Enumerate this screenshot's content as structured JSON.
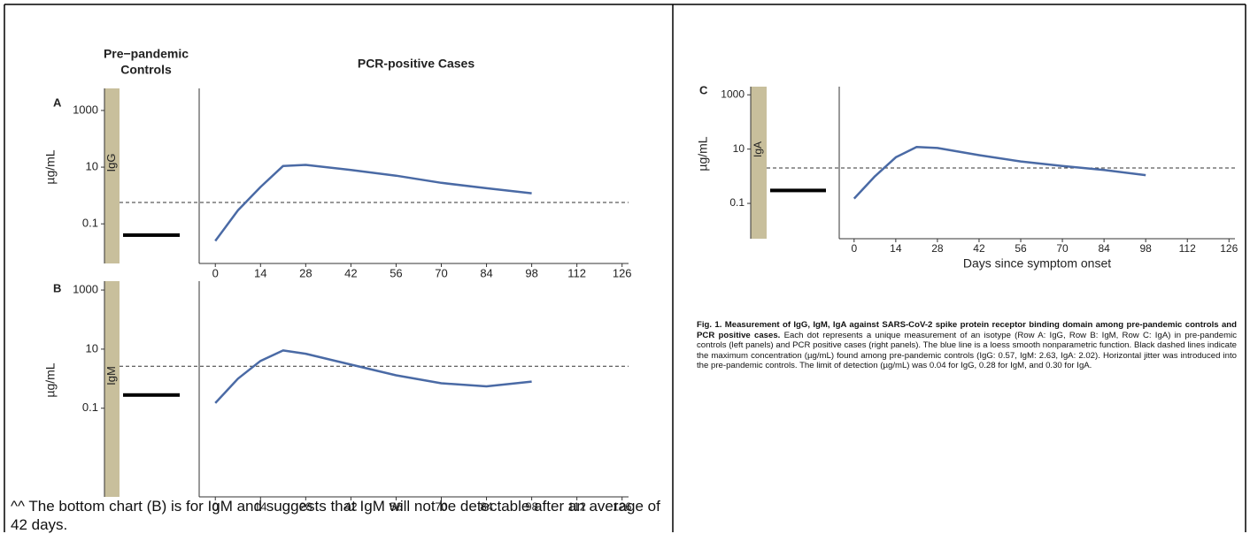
{
  "headers": {
    "controls": [
      "Pre−pandemic",
      "Controls"
    ],
    "cases": "PCR-positive Cases"
  },
  "note": "^^ The bottom chart (B) is for IgM and suggests that IgM will not be detectable after an average of 42 days.",
  "caption": {
    "bold": "Fig. 1. Measurement of IgG, IgM, IgA against SARS-CoV-2 spike protein receptor binding domain among pre-pandemic controls and PCR positive cases.",
    "text": "Each dot represents a unique measurement of an isotype (Row A: IgG, Row B: IgM, Row C: IgA) in pre-pandemic controls (left panels) and PCR positive cases (right panels). The blue line is a loess smooth nonparametric function. Black dashed lines indicate the maximum concentration (µg/mL) found among pre-pandemic controls (IgG: 0.57, IgM: 2.63, IgA: 2.02). Horizontal jitter was introduced into the pre-pandemic controls. The limit of detection (µg/mL) was 0.04 for IgG, 0.28 for IgM, and 0.30 for IgA."
  },
  "chart_data": [
    {
      "type": "line",
      "panel_label": "A",
      "strip_label": "IgG",
      "ylabel": "µg/mL",
      "log_y": true,
      "grid": false,
      "x": [
        0,
        7,
        14,
        21,
        28,
        42,
        56,
        70,
        84,
        98
      ],
      "series": [
        {
          "color": "#4a6aa5",
          "values": [
            0.025,
            0.3,
            2,
            11,
            12,
            8,
            5,
            2.8,
            1.8,
            1.2
          ]
        }
      ],
      "reference_line": 0.57,
      "detection_limit": 0.04,
      "xlim": [
        -5,
        128
      ],
      "xticks": [
        0,
        14,
        28,
        42,
        56,
        70,
        84,
        98,
        112,
        126
      ],
      "ylim": [
        0.004,
        6000
      ],
      "yticks": [
        0.1,
        10,
        1000
      ]
    },
    {
      "type": "line",
      "panel_label": "B",
      "strip_label": "IgM",
      "ylabel": "µg/mL",
      "log_y": true,
      "grid": false,
      "x": [
        0,
        7,
        14,
        21,
        28,
        42,
        56,
        70,
        84,
        98
      ],
      "series": [
        {
          "color": "#4a6aa5",
          "values": [
            0.15,
            1,
            4,
            9,
            7,
            3,
            1.3,
            0.7,
            0.55,
            0.8
          ]
        }
      ],
      "reference_line": 2.63,
      "detection_limit": 0.28,
      "xlim": [
        -5,
        128
      ],
      "xticks": [
        0,
        14,
        28,
        42,
        56,
        70,
        84,
        98,
        112,
        126
      ],
      "ylim": [
        0.0001,
        2000
      ],
      "yticks": [
        0.1,
        10,
        1000
      ]
    },
    {
      "type": "line",
      "panel_label": "C",
      "strip_label": "IgA",
      "ylabel": "µg/mL",
      "xlabel": "Days since symptom onset",
      "log_y": true,
      "grid": false,
      "x": [
        0,
        7,
        14,
        21,
        28,
        42,
        56,
        70,
        84,
        98
      ],
      "series": [
        {
          "color": "#4a6aa5",
          "values": [
            0.15,
            1,
            5,
            12,
            11,
            6,
            3.5,
            2.4,
            1.7,
            1.1
          ]
        }
      ],
      "reference_line": 2.02,
      "detection_limit": 0.3,
      "xlim": [
        -5,
        128
      ],
      "xticks": [
        0,
        14,
        28,
        42,
        56,
        70,
        84,
        98,
        112,
        126
      ],
      "ylim": [
        0.005,
        2000
      ],
      "yticks": [
        0.1,
        10,
        1000
      ]
    }
  ]
}
